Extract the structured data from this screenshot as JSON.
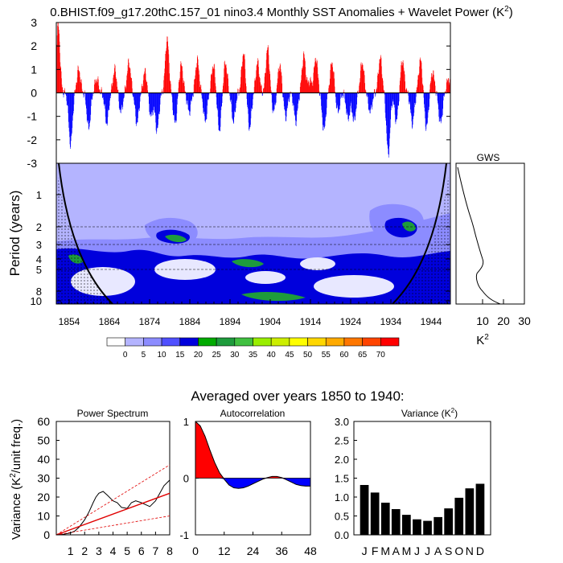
{
  "colors": {
    "positive": "#ff0000",
    "negative": "#0000ff",
    "wavelet_base": "#b4b4ff",
    "wavelet_mid": "#8c8cff",
    "wavelet_blue": "#0000dc",
    "wavelet_high": "#1e9b3c",
    "wavelet_peak": "#2a7a2a",
    "cone": "#000000",
    "red_line": "#e00000"
  },
  "top_panel": {
    "title": "0.BHIST.f09_g17.20thC.157_01 nino3.4 Monthly SST Anomalies + Wavelet Power (K",
    "title_sup": "2",
    "title_end": ")",
    "y_ticks": [
      "3",
      "2",
      "1",
      "0",
      "-1",
      "-2",
      "-3"
    ]
  },
  "wavelet_panel": {
    "ylabel": "Period (years)",
    "y_ticks": [
      "1",
      "2",
      "3",
      "4",
      "5",
      "8",
      "10"
    ],
    "x_ticks": [
      "1854",
      "1864",
      "1874",
      "1884",
      "1894",
      "1904",
      "1914",
      "1924",
      "1934",
      "1944"
    ]
  },
  "gws_panel": {
    "title": "GWS",
    "x_ticks": [
      "10",
      "20",
      "30"
    ],
    "xlabel": "K",
    "xlabel_sup": "2"
  },
  "colorbar": {
    "labels": [
      "0",
      "5",
      "10",
      "15",
      "20",
      "25",
      "30",
      "35",
      "40",
      "45",
      "50",
      "55",
      "60",
      "65",
      "70"
    ],
    "colors": [
      "#ffffff",
      "#b4b4ff",
      "#8c8cff",
      "#5050ff",
      "#0000dc",
      "#00aa00",
      "#1e9b3c",
      "#40c040",
      "#99ee00",
      "#ccee00",
      "#ffff00",
      "#ffd700",
      "#ffaa00",
      "#ff7700",
      "#ff4400",
      "#ff0000"
    ]
  },
  "section_title": "Averaged over years 1850 to 1940:",
  "chart_data": [
    {
      "type": "bar",
      "title": "nino3.4 Monthly SST Anomalies",
      "ylabel": "",
      "ylim": [
        -3,
        3
      ],
      "x_range": [
        1850,
        1948
      ],
      "note": "monthly anomaly series, positive red / negative blue"
    },
    {
      "type": "line",
      "title": "Power Spectrum",
      "xlabel": "",
      "ylabel": "Variance (K2/unit freq.)",
      "xlim": [
        0,
        8
      ],
      "ylim": [
        0,
        60
      ],
      "x_ticks": [
        "1",
        "2",
        "3",
        "4",
        "5",
        "6",
        "7",
        "8"
      ],
      "y_ticks": [
        "0",
        "10",
        "20",
        "30",
        "40",
        "50",
        "60"
      ],
      "series": [
        {
          "name": "spectrum",
          "color": "#000000",
          "x": [
            0,
            0.5,
            1,
            1.3,
            1.6,
            2,
            2.3,
            2.6,
            2.8,
            3,
            3.3,
            3.6,
            4,
            4.3,
            4.6,
            5,
            5.3,
            5.6,
            6,
            6.3,
            6.6,
            7,
            7.3,
            7.6,
            8
          ],
          "y": [
            0,
            0.3,
            1,
            2,
            4,
            8,
            12,
            17,
            20,
            22,
            23,
            21,
            18,
            17,
            14.5,
            14,
            17,
            18,
            17,
            16,
            15,
            18,
            22,
            26,
            29
          ]
        },
        {
          "name": "red-noise",
          "color": "#e00000",
          "x": [
            0,
            8
          ],
          "y": [
            0,
            22
          ]
        },
        {
          "name": "upper-ci",
          "color": "#e00000",
          "dashed": true,
          "x": [
            0,
            8
          ],
          "y": [
            0,
            37
          ]
        },
        {
          "name": "lower-ci",
          "color": "#e00000",
          "dashed": true,
          "x": [
            0,
            8
          ],
          "y": [
            0,
            10
          ]
        }
      ]
    },
    {
      "type": "area",
      "title": "Autocorrelation",
      "xlim": [
        0,
        48
      ],
      "ylim": [
        -1,
        1
      ],
      "x_ticks": [
        "0",
        "12",
        "24",
        "36",
        "48"
      ],
      "y_ticks": [
        "1",
        "0",
        "-1"
      ],
      "series": [
        {
          "name": "acf",
          "x": [
            0,
            2,
            4,
            6,
            8,
            10,
            12,
            14,
            16,
            18,
            20,
            22,
            24,
            26,
            28,
            30,
            32,
            34,
            36,
            38,
            40,
            42,
            44,
            46,
            48
          ],
          "y": [
            1,
            0.92,
            0.74,
            0.5,
            0.28,
            0.1,
            -0.02,
            -0.12,
            -0.17,
            -0.18,
            -0.17,
            -0.14,
            -0.1,
            -0.06,
            -0.02,
            0.01,
            0.03,
            0.03,
            0.01,
            -0.03,
            -0.07,
            -0.11,
            -0.13,
            -0.14,
            -0.14
          ]
        }
      ]
    },
    {
      "type": "bar",
      "title": "Variance (K",
      "title_sup": "2",
      "title_end": ")",
      "categories": [
        "J",
        "F",
        "M",
        "A",
        "M",
        "J",
        "J",
        "A",
        "S",
        "O",
        "N",
        "D"
      ],
      "values": [
        1.32,
        1.12,
        0.85,
        0.68,
        0.53,
        0.41,
        0.37,
        0.47,
        0.7,
        0.98,
        1.23,
        1.35
      ],
      "ylim": [
        0,
        3.0
      ],
      "y_ticks": [
        "0.0",
        "0.5",
        "1.0",
        "1.5",
        "2.0",
        "2.5",
        "3.0"
      ]
    }
  ]
}
